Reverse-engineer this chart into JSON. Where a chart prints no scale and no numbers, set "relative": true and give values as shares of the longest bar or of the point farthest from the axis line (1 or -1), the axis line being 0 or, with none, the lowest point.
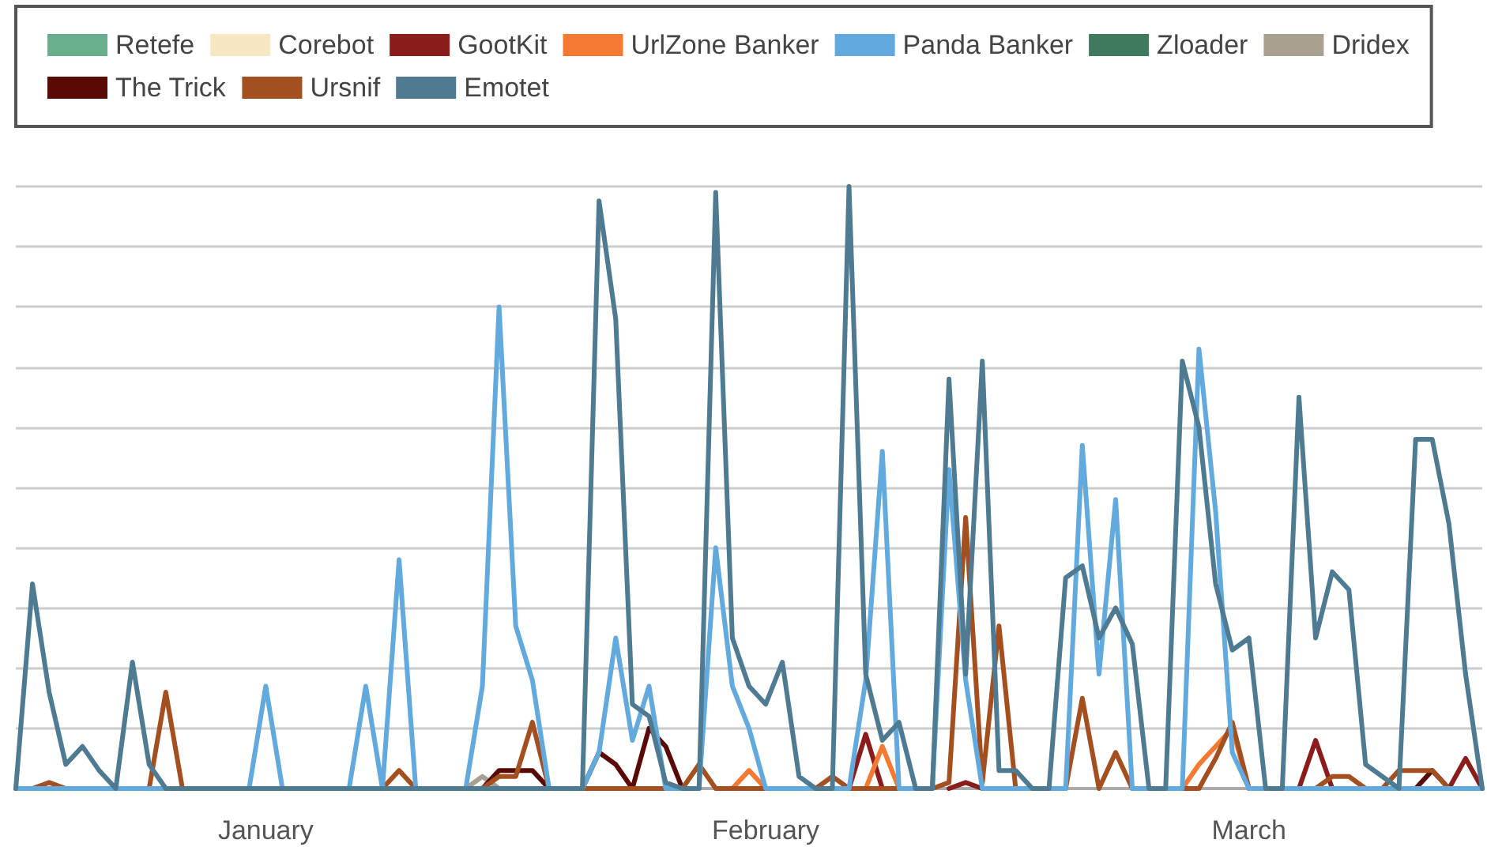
{
  "chart_data": {
    "type": "line",
    "relative": true,
    "grid": "y",
    "legend": "top",
    "marker": "none",
    "line_style": "solid",
    "categories": [
      null,
      null,
      null,
      null,
      null,
      null,
      null,
      null,
      null,
      null,
      null,
      null,
      null,
      null,
      null,
      "January",
      null,
      null,
      null,
      null,
      null,
      null,
      null,
      null,
      null,
      null,
      null,
      null,
      null,
      null,
      null,
      null,
      null,
      null,
      null,
      null,
      null,
      null,
      null,
      null,
      null,
      null,
      null,
      null,
      null,
      "February",
      null,
      null,
      null,
      null,
      null,
      null,
      null,
      null,
      null,
      null,
      null,
      null,
      null,
      null,
      null,
      null,
      null,
      null,
      null,
      null,
      null,
      null,
      null,
      null,
      null,
      null,
      null,
      null,
      "March",
      null,
      null,
      null,
      null,
      null,
      null,
      null,
      null,
      null,
      null,
      null,
      null,
      null,
      null
    ],
    "series": [
      {
        "name": "Retefe",
        "color": "#6aae8e",
        "values": [
          null,
          null,
          null,
          null,
          null,
          null,
          null,
          null,
          null,
          null,
          null,
          null,
          null,
          null,
          null,
          null,
          null,
          null,
          null,
          null,
          null,
          null,
          null,
          null,
          null,
          null,
          null,
          null,
          null,
          null,
          null,
          null,
          null,
          null,
          null,
          null,
          null,
          null,
          null,
          null,
          null,
          null,
          null,
          null,
          null,
          null,
          null,
          null,
          null,
          null,
          null,
          null,
          null,
          null,
          null,
          null,
          null,
          null,
          null,
          null,
          null,
          null,
          null,
          null,
          null,
          null,
          null,
          null,
          null,
          null,
          null,
          null,
          null,
          null,
          null,
          null,
          null,
          null,
          null,
          null,
          null,
          null,
          null,
          null,
          null,
          null,
          null,
          null,
          null
        ]
      },
      {
        "name": "Zloader",
        "color": "#3f7a5f",
        "values": [
          null,
          null,
          null,
          null,
          null,
          null,
          null,
          null,
          null,
          null,
          null,
          null,
          null,
          null,
          null,
          null,
          null,
          null,
          null,
          null,
          null,
          null,
          null,
          null,
          null,
          null,
          null,
          null,
          null,
          null,
          null,
          null,
          null,
          null,
          null,
          null,
          null,
          null,
          null,
          null,
          null,
          null,
          null,
          null,
          null,
          null,
          null,
          null,
          null,
          null,
          null,
          null,
          null,
          null,
          null,
          null,
          null,
          null,
          null,
          null,
          null,
          null,
          null,
          null,
          null,
          null,
          null,
          null,
          null,
          null,
          null,
          null,
          null,
          null,
          null,
          null,
          null,
          null,
          null,
          null,
          null,
          null,
          null,
          null,
          null,
          null,
          null,
          null,
          null
        ]
      },
      {
        "name": "Corebot",
        "color": "#f7e6c4",
        "values": [
          null,
          null,
          null,
          null,
          null,
          null,
          null,
          null,
          null,
          null,
          null,
          null,
          null,
          null,
          null,
          null,
          null,
          null,
          null,
          null,
          null,
          null,
          null,
          null,
          null,
          null,
          null,
          null,
          null,
          null,
          null,
          null,
          null,
          null,
          null,
          null,
          null,
          null,
          null,
          null,
          null,
          null,
          null,
          null,
          null,
          null,
          null,
          null,
          null,
          null,
          null,
          null,
          null,
          null,
          null,
          null,
          null,
          null,
          null,
          null,
          null,
          null,
          null,
          null,
          null,
          null,
          null,
          null,
          null,
          null,
          null,
          null,
          null,
          null,
          null,
          null,
          null,
          null,
          null,
          null,
          null,
          null,
          null,
          null,
          null,
          null,
          null,
          null,
          null
        ]
      },
      {
        "name": "Dridex",
        "color": "#a8a191",
        "values": [
          null,
          null,
          null,
          null,
          null,
          null,
          null,
          null,
          null,
          null,
          null,
          null,
          null,
          null,
          null,
          null,
          null,
          null,
          null,
          null,
          null,
          null,
          null,
          null,
          null,
          null,
          null,
          0,
          0.02,
          0,
          null,
          null,
          null,
          null,
          null,
          null,
          null,
          null,
          null,
          null,
          null,
          null,
          null,
          null,
          null,
          null,
          null,
          null,
          null,
          null,
          null,
          null,
          null,
          null,
          null,
          null,
          null,
          null,
          null,
          null,
          null,
          null,
          null,
          null,
          null,
          null,
          null,
          null,
          null,
          null,
          null,
          null,
          null,
          null,
          null,
          null,
          null,
          null,
          null,
          null,
          null,
          null,
          null,
          null,
          null,
          null,
          null,
          null,
          null
        ]
      },
      {
        "name": "GootKit",
        "color": "#8b1c1c",
        "values": [
          null,
          null,
          null,
          null,
          null,
          null,
          null,
          null,
          null,
          null,
          null,
          null,
          null,
          null,
          null,
          null,
          null,
          null,
          null,
          null,
          null,
          null,
          null,
          null,
          null,
          null,
          null,
          null,
          null,
          null,
          null,
          null,
          null,
          null,
          null,
          null,
          null,
          null,
          null,
          null,
          null,
          null,
          null,
          null,
          null,
          null,
          null,
          null,
          null,
          null,
          0,
          0.09,
          0,
          null,
          null,
          null,
          0,
          0.01,
          0,
          null,
          null,
          null,
          null,
          null,
          null,
          null,
          null,
          null,
          null,
          null,
          null,
          null,
          null,
          null,
          null,
          null,
          null,
          0,
          0.08,
          0,
          null,
          null,
          null,
          null,
          null,
          null,
          0,
          0.05,
          0
        ]
      },
      {
        "name": "The Trick",
        "color": "#5a0a05",
        "values": [
          null,
          null,
          null,
          null,
          null,
          null,
          null,
          null,
          null,
          null,
          null,
          null,
          null,
          null,
          null,
          null,
          null,
          null,
          null,
          null,
          null,
          null,
          null,
          null,
          null,
          null,
          null,
          null,
          0,
          0.03,
          0.03,
          0.03,
          0,
          null,
          0,
          0.06,
          0.04,
          0,
          0.1,
          0.07,
          0,
          null,
          null,
          null,
          null,
          null,
          null,
          null,
          null,
          null,
          null,
          null,
          null,
          null,
          null,
          null,
          null,
          null,
          null,
          null,
          null,
          null,
          null,
          null,
          null,
          null,
          null,
          null,
          null,
          null,
          null,
          null,
          null,
          null,
          null,
          null,
          null,
          null,
          null,
          null,
          null,
          null,
          null,
          null,
          0,
          0.03,
          0,
          null,
          null
        ]
      },
      {
        "name": "UrlZone Banker",
        "color": "#f47a33",
        "values": [
          null,
          null,
          null,
          null,
          null,
          null,
          null,
          null,
          null,
          null,
          null,
          null,
          null,
          null,
          null,
          null,
          null,
          null,
          null,
          null,
          null,
          null,
          null,
          null,
          null,
          null,
          null,
          null,
          null,
          null,
          null,
          null,
          null,
          null,
          null,
          null,
          null,
          null,
          null,
          null,
          null,
          null,
          null,
          0,
          0.03,
          0,
          null,
          null,
          null,
          null,
          null,
          0,
          0.07,
          0,
          null,
          null,
          null,
          null,
          null,
          null,
          null,
          null,
          null,
          null,
          null,
          null,
          null,
          null,
          null,
          null,
          0,
          0.04,
          0.07,
          0.1,
          0,
          null,
          null,
          null,
          null,
          null,
          null,
          null,
          null,
          null,
          null,
          null,
          null,
          null,
          null
        ]
      },
      {
        "name": "Ursnif",
        "color": "#a34f1f",
        "values": [
          0,
          0,
          0.01,
          0,
          0,
          0,
          0,
          0,
          0,
          0.16,
          0,
          0,
          0,
          0,
          0,
          0,
          0,
          0,
          0,
          0,
          0,
          0,
          0,
          0.03,
          0,
          0,
          0,
          0,
          0,
          0.02,
          0.02,
          0.11,
          0,
          0,
          0,
          0,
          0,
          0,
          0,
          0,
          0,
          0.04,
          0,
          0,
          0,
          0,
          0,
          0,
          0,
          0.02,
          0,
          0,
          0,
          0,
          0,
          0,
          0.01,
          0.45,
          0.01,
          0.27,
          0,
          0,
          0,
          0,
          0.15,
          0,
          0.06,
          0,
          0,
          0,
          0,
          0,
          0.05,
          0.11,
          0,
          0,
          0,
          0,
          0,
          0.02,
          0.02,
          0,
          0,
          0.03,
          0.03,
          0.03,
          0,
          0,
          0
        ]
      },
      {
        "name": "Panda Banker",
        "color": "#62a9dd",
        "values": [
          0,
          0,
          0,
          0,
          0,
          0,
          0,
          0,
          0,
          0,
          0,
          0,
          0,
          0,
          0,
          0.17,
          0,
          0,
          0,
          0,
          0,
          0.17,
          0,
          0.38,
          0,
          0,
          0,
          0,
          0.17,
          0.8,
          0.27,
          0.18,
          0,
          0,
          0,
          0.06,
          0.25,
          0.08,
          0.17,
          0,
          0,
          0,
          0.4,
          0.17,
          0.1,
          0,
          0,
          0,
          0,
          0,
          0,
          0.18,
          0.56,
          0,
          0,
          0,
          0.53,
          0.18,
          0,
          0,
          0,
          0,
          0,
          0,
          0.57,
          0.19,
          0.48,
          0,
          0,
          0,
          0,
          0.73,
          0.46,
          0.06,
          0,
          0,
          0,
          0,
          0,
          0,
          0,
          0,
          0,
          0,
          0,
          0,
          0,
          0,
          0
        ]
      },
      {
        "name": "Emotet",
        "color": "#4e7a92",
        "values": [
          0,
          0.34,
          0.16,
          0.04,
          0.07,
          0.03,
          0,
          0.21,
          0.04,
          0,
          0,
          0,
          0,
          0,
          0,
          0,
          0,
          0,
          0,
          0,
          0,
          0,
          0,
          0,
          0,
          0,
          0,
          0,
          0,
          0,
          0,
          0,
          0,
          0,
          0,
          0.976,
          0.78,
          0.14,
          0.12,
          0.01,
          0,
          0,
          0.99,
          0.25,
          0.17,
          0.14,
          0.21,
          0.02,
          0,
          0,
          1,
          0.19,
          0.08,
          0.11,
          0,
          0,
          0.68,
          0.19,
          0.71,
          0.03,
          0.03,
          0,
          0,
          0.35,
          0.37,
          0.25,
          0.3,
          0.24,
          0,
          0,
          0.71,
          0.6,
          0.34,
          0.23,
          0.25,
          0,
          0,
          0.65,
          0.25,
          0.36,
          0.33,
          0.04,
          0.02,
          0,
          0.58,
          0.58,
          0.44,
          0.19,
          0
        ]
      }
    ]
  }
}
